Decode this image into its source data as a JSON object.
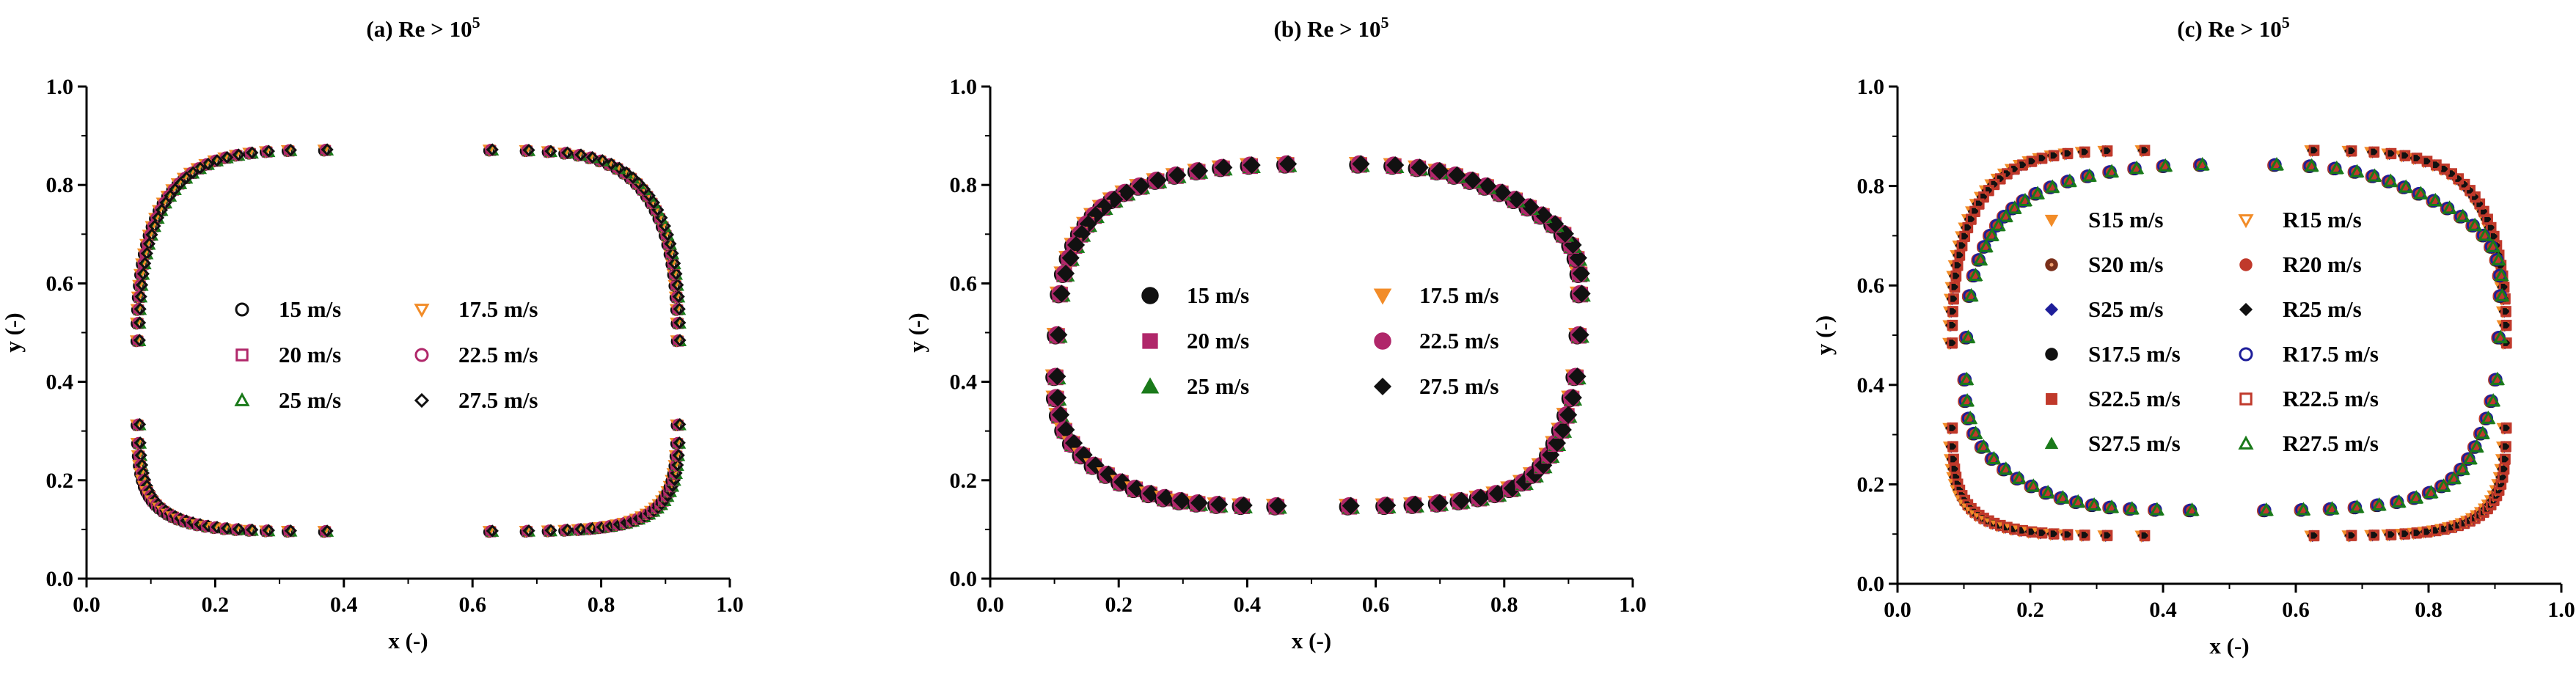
{
  "figure": {
    "marker_colors": {
      "black": "#111111",
      "magenta": "#b0276a",
      "green": "#1a7a1a",
      "orange": "#f28c28",
      "navy": "#1e1e9a",
      "brown": "#7a2f1a",
      "red": "#c0392b",
      "dark": "#000000"
    }
  },
  "chart_data": [
    {
      "type": "scatter",
      "title": "(a) Re > 10",
      "title_sup": "5",
      "xlabel": "x (-)",
      "ylabel": "y (-)",
      "xlim": [
        0.0,
        1.0
      ],
      "ylim": [
        0.0,
        1.0
      ],
      "xticks": [
        "0.0",
        "0.2",
        "0.4",
        "0.6",
        "0.8",
        "1.0"
      ],
      "yticks": [
        "0.0",
        "0.2",
        "0.4",
        "0.6",
        "0.8",
        "1.0"
      ],
      "contour": {
        "shape": "rounded_dome",
        "x_min": 0.08,
        "x_max": 0.92,
        "y_min": 0.095,
        "y_max": 0.87,
        "peak_x": 0.49,
        "points": 110
      },
      "series": [
        {
          "name": "15 m/s",
          "marker": "circle-open",
          "color": "#111111"
        },
        {
          "name": "20 m/s",
          "marker": "square-open",
          "color": "#b0276a"
        },
        {
          "name": "25 m/s",
          "marker": "triangle-open",
          "color": "#1a7a1a"
        },
        {
          "name": "17.5 m/s",
          "marker": "triangle-down-open",
          "color": "#f28c28"
        },
        {
          "name": "22.5 m/s",
          "marker": "circle-open",
          "color": "#b0276a"
        },
        {
          "name": "27.5 m/s",
          "marker": "diamond-open",
          "color": "#111111"
        }
      ]
    },
    {
      "type": "scatter",
      "title": "(b) Re > 10",
      "title_sup": "5",
      "xlabel": "x (-)",
      "ylabel": "y (-)",
      "xlim": [
        0.0,
        1.0
      ],
      "ylim": [
        0.0,
        1.0
      ],
      "xticks": [
        "0.0",
        "0.2",
        "0.4",
        "0.6",
        "0.8",
        "1.0"
      ],
      "yticks": [
        "0.0",
        "0.2",
        "0.4",
        "0.6",
        "0.8",
        "1.0"
      ],
      "contour": {
        "shape": "irregular_loop",
        "x_min": 0.11,
        "x_max": 0.91,
        "y_min": 0.14,
        "y_max": 0.835,
        "points": 70
      },
      "series": [
        {
          "name": "15 m/s",
          "marker": "circle",
          "color": "#111111"
        },
        {
          "name": "20 m/s",
          "marker": "square",
          "color": "#b0276a"
        },
        {
          "name": "25 m/s",
          "marker": "triangle",
          "color": "#1a7a1a"
        },
        {
          "name": "17.5 m/s",
          "marker": "triangle-down",
          "color": "#f28c28"
        },
        {
          "name": "22.5 m/s",
          "marker": "circle",
          "color": "#b0276a"
        },
        {
          "name": "27.5 m/s",
          "marker": "diamond",
          "color": "#111111"
        }
      ]
    },
    {
      "type": "scatter",
      "title": "(c) Re > 10",
      "title_sup": "5",
      "xlabel": "x (-)",
      "ylabel": "y (-)",
      "xlim": [
        0.0,
        1.0
      ],
      "ylim": [
        0.0,
        1.0
      ],
      "xticks": [
        "0.0",
        "0.2",
        "0.4",
        "0.6",
        "0.8",
        "1.0"
      ],
      "yticks": [
        "0.0",
        "0.2",
        "0.4",
        "0.6",
        "0.8",
        "1.0"
      ],
      "contour_outer": {
        "shape": "rounded_dome",
        "x_min": 0.08,
        "x_max": 0.915,
        "y_min": 0.095,
        "y_max": 0.87,
        "peak_x": 0.49,
        "points": 110
      },
      "contour_inner": {
        "shape": "irregular_loop",
        "x_min": 0.11,
        "x_max": 0.9,
        "y_min": 0.14,
        "y_max": 0.835,
        "points": 70
      },
      "series": [
        {
          "name": "S15 m/s",
          "marker": "triangle-down",
          "color": "#f28c28"
        },
        {
          "name": "S20 m/s",
          "marker": "circle-dot",
          "color": "#7a2f1a"
        },
        {
          "name": "S25 m/s",
          "marker": "diamond",
          "color": "#1e1e9a"
        },
        {
          "name": "S17.5 m/s",
          "marker": "circle",
          "color": "#111111"
        },
        {
          "name": "S22.5 m/s",
          "marker": "square",
          "color": "#c0392b"
        },
        {
          "name": "S27.5 m/s",
          "marker": "triangle",
          "color": "#1a7a1a"
        },
        {
          "name": "R15 m/s",
          "marker": "triangle-down-open",
          "color": "#f28c28"
        },
        {
          "name": "R20 m/s",
          "marker": "circle",
          "color": "#c0392b"
        },
        {
          "name": "R25 m/s",
          "marker": "diamond",
          "color": "#111111"
        },
        {
          "name": "R17.5 m/s",
          "marker": "circle-open",
          "color": "#1e1e9a"
        },
        {
          "name": "R22.5 m/s",
          "marker": "square-open",
          "color": "#c0392b"
        },
        {
          "name": "R27.5 m/s",
          "marker": "triangle-open",
          "color": "#1a7a1a"
        }
      ]
    }
  ]
}
